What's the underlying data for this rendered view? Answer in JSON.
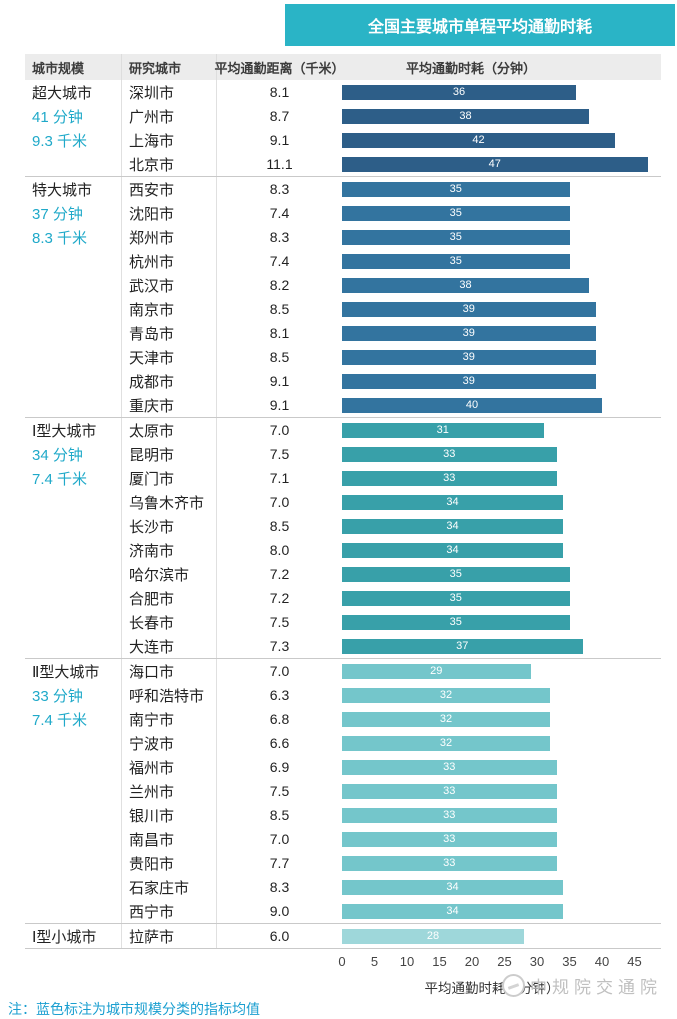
{
  "title": "全国主要城市单程平均通勤时耗",
  "columns": {
    "scale": "城市规模",
    "city": "研究城市",
    "distance": "平均通勤距离（千米）",
    "time": "平均通勤时耗（分钟）"
  },
  "axis": {
    "ticks": [
      0,
      5,
      10,
      15,
      20,
      25,
      30,
      35,
      40,
      45
    ],
    "label": "平均通勤时耗（分钟）",
    "max": 45
  },
  "note": "注：蓝色标注为城市规模分类的指标均值",
  "watermark": "中规院交通院",
  "colors": {
    "title_bg": "#2ab4c6",
    "avg_text": "#1fa9c9",
    "note_text": "#1b9fd0",
    "group1_bar": "#2d5e88",
    "group2_bar": "#33749f",
    "group3_bar": "#38a0a9",
    "group4_bar": "#74c6cb",
    "group5_bar": "#9ed7da"
  },
  "chart_data": {
    "type": "bar",
    "title": "全国主要城市单程平均通勤时耗",
    "xlabel": "平均通勤时耗（分钟）",
    "xlim": [
      0,
      45
    ],
    "legend": "none",
    "grid": false,
    "groups": [
      {
        "name": "超大城市",
        "avg_minutes": "41 分钟",
        "avg_km": "9.3 千米",
        "color": "#2d5e88",
        "cities": [
          {
            "city": "深圳市",
            "distance": "8.1",
            "minutes": 36
          },
          {
            "city": "广州市",
            "distance": "8.7",
            "minutes": 38
          },
          {
            "city": "上海市",
            "distance": "9.1",
            "minutes": 42
          },
          {
            "city": "北京市",
            "distance": "11.1",
            "minutes": 47
          }
        ]
      },
      {
        "name": "特大城市",
        "avg_minutes": "37 分钟",
        "avg_km": "8.3 千米",
        "color": "#33749f",
        "cities": [
          {
            "city": "西安市",
            "distance": "8.3",
            "minutes": 35
          },
          {
            "city": "沈阳市",
            "distance": "7.4",
            "minutes": 35
          },
          {
            "city": "郑州市",
            "distance": "8.3",
            "minutes": 35
          },
          {
            "city": "杭州市",
            "distance": "7.4",
            "minutes": 35
          },
          {
            "city": "武汉市",
            "distance": "8.2",
            "minutes": 38
          },
          {
            "city": "南京市",
            "distance": "8.5",
            "minutes": 39
          },
          {
            "city": "青岛市",
            "distance": "8.1",
            "minutes": 39
          },
          {
            "city": "天津市",
            "distance": "8.5",
            "minutes": 39
          },
          {
            "city": "成都市",
            "distance": "9.1",
            "minutes": 39
          },
          {
            "city": "重庆市",
            "distance": "9.1",
            "minutes": 40
          }
        ]
      },
      {
        "name": "Ⅰ型大城市",
        "avg_minutes": "34 分钟",
        "avg_km": "7.4 千米",
        "color": "#38a0a9",
        "cities": [
          {
            "city": "太原市",
            "distance": "7.0",
            "minutes": 31
          },
          {
            "city": "昆明市",
            "distance": "7.5",
            "minutes": 33
          },
          {
            "city": "厦门市",
            "distance": "7.1",
            "minutes": 33
          },
          {
            "city": "乌鲁木齐市",
            "distance": "7.0",
            "minutes": 34
          },
          {
            "city": "长沙市",
            "distance": "8.5",
            "minutes": 34
          },
          {
            "city": "济南市",
            "distance": "8.0",
            "minutes": 34
          },
          {
            "city": "哈尔滨市",
            "distance": "7.2",
            "minutes": 35
          },
          {
            "city": "合肥市",
            "distance": "7.2",
            "minutes": 35
          },
          {
            "city": "长春市",
            "distance": "7.5",
            "minutes": 35
          },
          {
            "city": "大连市",
            "distance": "7.3",
            "minutes": 37
          }
        ]
      },
      {
        "name": "Ⅱ型大城市",
        "avg_minutes": "33 分钟",
        "avg_km": "7.4 千米",
        "color": "#74c6cb",
        "cities": [
          {
            "city": "海口市",
            "distance": "7.0",
            "minutes": 29
          },
          {
            "city": "呼和浩特市",
            "distance": "6.3",
            "minutes": 32
          },
          {
            "city": "南宁市",
            "distance": "6.8",
            "minutes": 32
          },
          {
            "city": "宁波市",
            "distance": "6.6",
            "minutes": 32
          },
          {
            "city": "福州市",
            "distance": "6.9",
            "minutes": 33
          },
          {
            "city": "兰州市",
            "distance": "7.5",
            "minutes": 33
          },
          {
            "city": "银川市",
            "distance": "8.5",
            "minutes": 33
          },
          {
            "city": "南昌市",
            "distance": "7.0",
            "minutes": 33
          },
          {
            "city": "贵阳市",
            "distance": "7.7",
            "minutes": 33
          },
          {
            "city": "石家庄市",
            "distance": "8.3",
            "minutes": 34
          },
          {
            "city": "西宁市",
            "distance": "9.0",
            "minutes": 34
          }
        ]
      },
      {
        "name": "Ⅰ型小城市",
        "avg_minutes": "",
        "avg_km": "",
        "color": "#9ed7da",
        "cities": [
          {
            "city": "拉萨市",
            "distance": "6.0",
            "minutes": 28
          }
        ]
      }
    ]
  }
}
